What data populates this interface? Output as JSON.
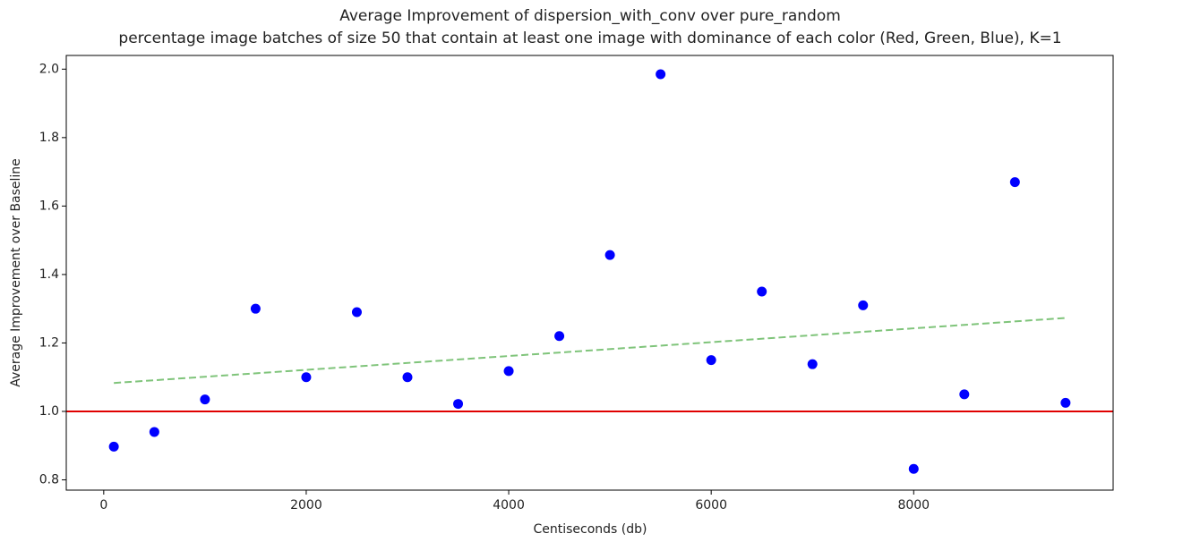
{
  "chart_data": {
    "type": "scatter",
    "title": "Average Improvement of dispersion_with_conv over pure_random",
    "subtitle": "percentage image batches of size 50 that contain at least one image with dominance of each color (Red, Green, Blue), K=1",
    "x_label": "Centiseconds (db)",
    "y_label": "Average Improvement over Baseline",
    "x": [
      100,
      500,
      1000,
      1500,
      2000,
      2500,
      3000,
      3500,
      4000,
      4500,
      5000,
      5500,
      6000,
      6500,
      7000,
      7500,
      8000,
      8500,
      9000,
      9500
    ],
    "values": [
      0.897,
      0.94,
      1.035,
      1.3,
      1.1,
      1.29,
      1.1,
      1.022,
      1.118,
      1.22,
      1.457,
      1.985,
      1.15,
      1.35,
      1.138,
      1.31,
      0.832,
      1.05,
      1.67,
      1.025
    ],
    "color": "#0000ff",
    "trend": {
      "x": [
        100,
        9500
      ],
      "values": [
        1.083,
        1.273
      ],
      "color": "#7fc47a",
      "dashed": true
    },
    "reference_line": {
      "value": 1,
      "color": "#e00000"
    },
    "xlim": [
      -370,
      9970
    ],
    "ylim": [
      0.77,
      2.04
    ],
    "xticks": [
      0,
      2000,
      4000,
      6000,
      8000
    ],
    "yticks": [
      0.8,
      {
        "value": 1,
        "label": "1.0"
      },
      1.2,
      1.4,
      1.6,
      1.8,
      {
        "value": 2,
        "label": "2.0"
      }
    ],
    "grid": false
  }
}
